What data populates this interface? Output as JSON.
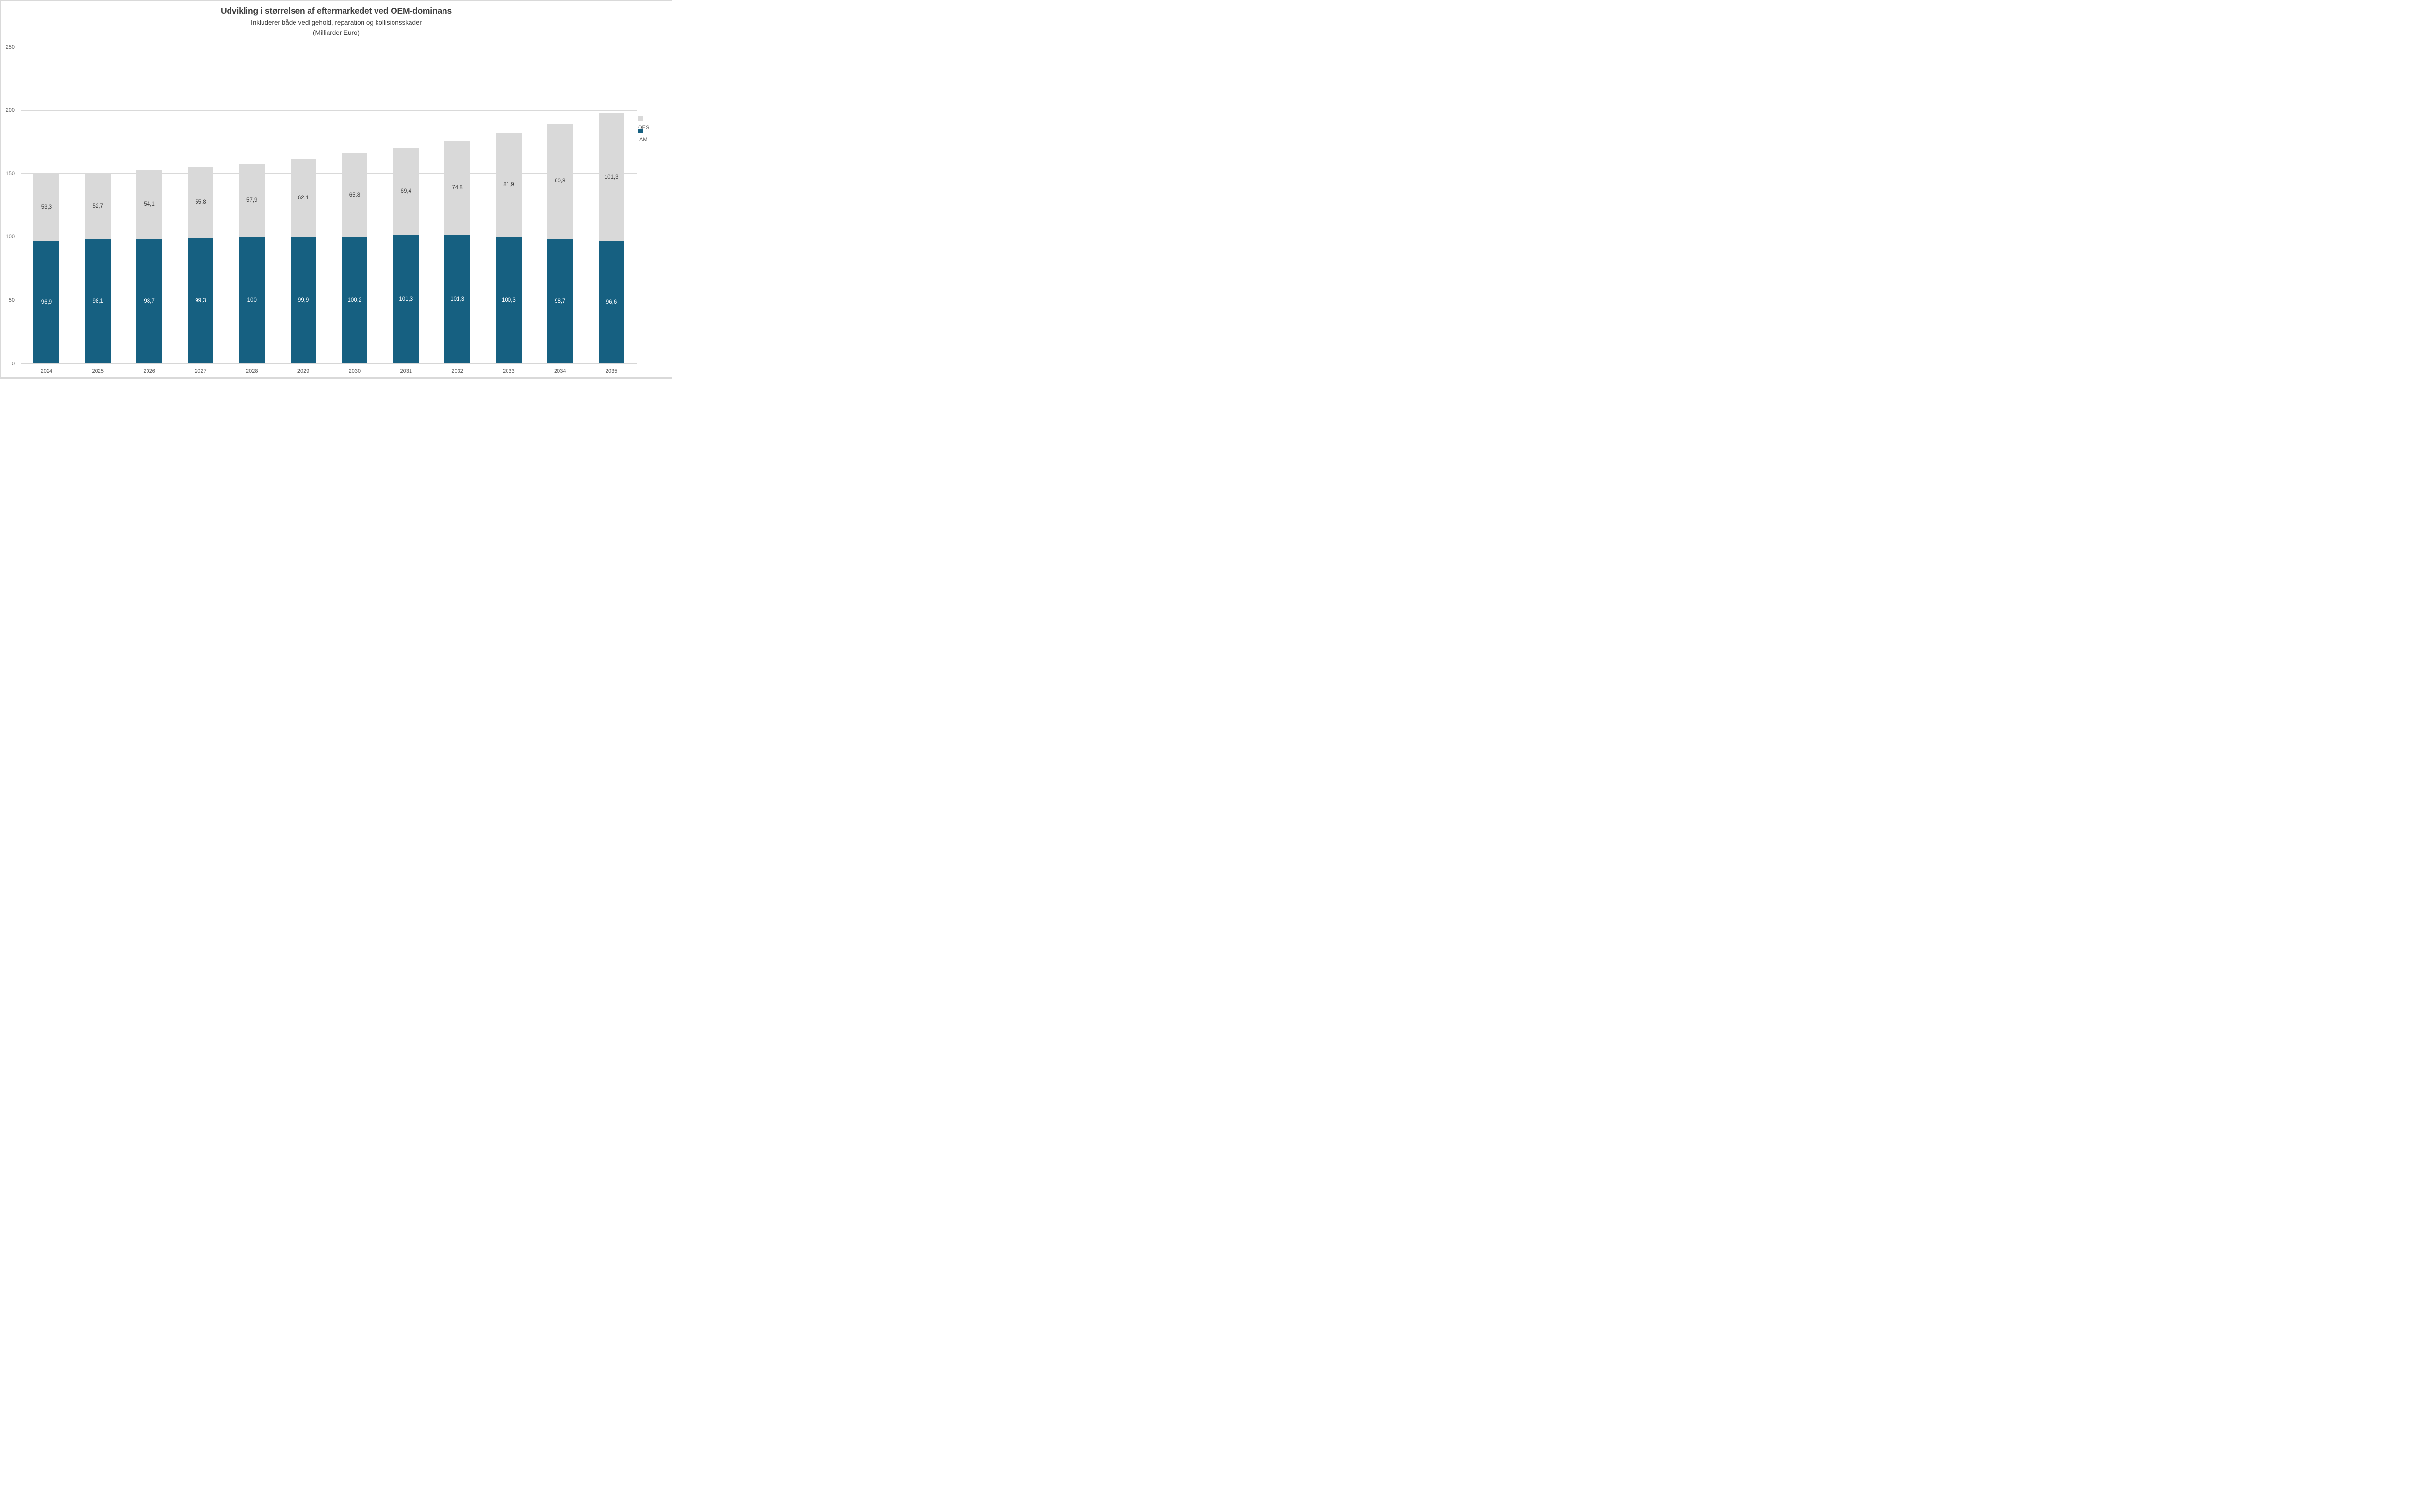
{
  "title": "Udvikling i størrelsen af eftermarkedet ved OEM-dominans",
  "subtitle": "Inkluderer både vedligehold, reparation og kollisionsskader",
  "unit_line": "(Milliarder Euro)",
  "colors": {
    "iam_fill": "#166081",
    "oes_fill": "#d9d9d9",
    "iam_label_text": "#ffffff",
    "oes_label_text": "#404040",
    "axis_text": "#595959",
    "gridline": "#d9d9d9",
    "title_text": "#3f3f3f"
  },
  "chart_data": {
    "type": "bar",
    "stacked": true,
    "title": "Udvikling i størrelsen af eftermarkedet ved OEM-dominans",
    "subtitle": "Inkluderer både vedligehold, reparation og kollisionsskader",
    "unit": "(Milliarder Euro)",
    "categories": [
      "2024",
      "2025",
      "2026",
      "2027",
      "2028",
      "2029",
      "2030",
      "2031",
      "2032",
      "2033",
      "2034",
      "2035"
    ],
    "series": [
      {
        "name": "IAM",
        "color": "#166081",
        "label_color": "#ffffff",
        "values": [
          96.9,
          98.1,
          98.7,
          99.3,
          100,
          99.9,
          100.2,
          101.3,
          101.3,
          100.3,
          98.7,
          96.6
        ],
        "labels": [
          "96,9",
          "98,1",
          "98,7",
          "99,3",
          "100",
          "99,9",
          "100,2",
          "101,3",
          "101,3",
          "100,3",
          "98,7",
          "96,6"
        ]
      },
      {
        "name": "OES",
        "color": "#d9d9d9",
        "label_color": "#404040",
        "values": [
          53.3,
          52.7,
          54.1,
          55.8,
          57.9,
          62.1,
          65.8,
          69.4,
          74.8,
          81.9,
          90.8,
          101.3
        ],
        "labels": [
          "53,3",
          "52,7",
          "54,1",
          "55,8",
          "57,9",
          "62,1",
          "65,8",
          "69,4",
          "74,8",
          "81,9",
          "90,8",
          "101,3"
        ]
      }
    ],
    "ylim": [
      0,
      250
    ],
    "yticks": [
      0,
      50,
      100,
      150,
      200,
      250
    ],
    "grid": true,
    "legend_position": "right",
    "legend_order": [
      "OES",
      "IAM"
    ]
  }
}
